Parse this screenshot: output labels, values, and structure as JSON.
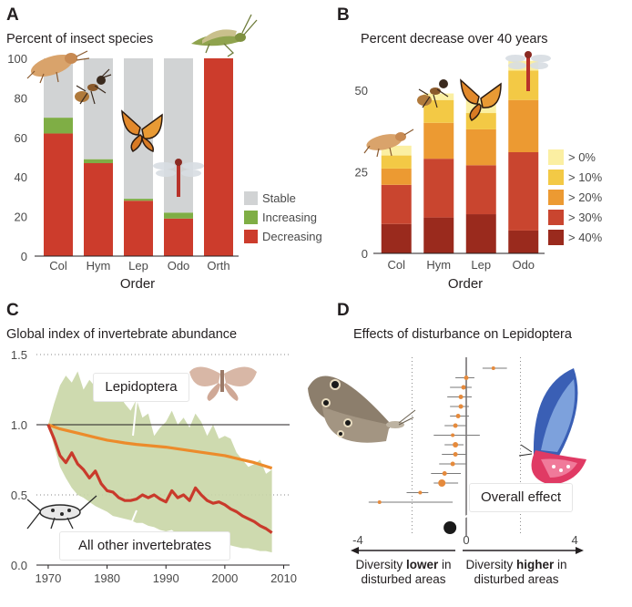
{
  "panels": {
    "A": {
      "letter": "A",
      "title": "Percent of insect species"
    },
    "B": {
      "letter": "B",
      "title": "Percent decrease over 40 years"
    },
    "C": {
      "letter": "C",
      "title": "Global index of invertebrate abundance"
    },
    "D": {
      "letter": "D",
      "title": "Effects of disturbance on Lepidoptera"
    }
  },
  "chart_data": [
    {
      "id": "A",
      "type": "bar",
      "title": "Percent of insect species",
      "xlabel": "Order",
      "ylabel": "",
      "categories": [
        "Col",
        "Hym",
        "Lep",
        "Odo",
        "Orth"
      ],
      "ylim": [
        0,
        100
      ],
      "yticks": [
        0,
        20,
        40,
        60,
        80,
        100
      ],
      "stacked": true,
      "series": [
        {
          "name": "Decreasing",
          "color": "#cc3c2c",
          "values": [
            62,
            47,
            28,
            19,
            100
          ]
        },
        {
          "name": "Increasing",
          "color": "#7fae45",
          "values": [
            8,
            2,
            1,
            3,
            0
          ]
        },
        {
          "name": "Stable",
          "color": "#d1d3d4",
          "values": [
            30,
            51,
            71,
            78,
            0
          ]
        }
      ],
      "legend_order": [
        "Stable",
        "Increasing",
        "Decreasing"
      ],
      "legend_position": "bottom-right"
    },
    {
      "id": "B",
      "type": "bar",
      "title": "Percent decrease over 40 years",
      "xlabel": "Order",
      "ylabel": "",
      "categories": [
        "Col",
        "Hym",
        "Lep",
        "Odo"
      ],
      "ylim": [
        0,
        62
      ],
      "yticks": [
        0,
        25,
        50
      ],
      "stacked": true,
      "series": [
        {
          "name": "> 40%",
          "color": "#9a2a1d",
          "values": [
            9,
            11,
            12,
            7
          ]
        },
        {
          "name": "> 30%",
          "color": "#c9452f",
          "values": [
            12,
            18,
            15,
            24
          ]
        },
        {
          "name": "> 20%",
          "color": "#ec9a32",
          "values": [
            5,
            11,
            11,
            16
          ]
        },
        {
          "name": "> 10%",
          "color": "#f3c945",
          "values": [
            4,
            7,
            5,
            9
          ]
        },
        {
          "name": "> 0%",
          "color": "#fbefa2",
          "values": [
            3,
            2,
            4,
            3
          ]
        }
      ],
      "legend_order": [
        "> 0%",
        "> 10%",
        "> 20%",
        "> 30%",
        "> 40%"
      ],
      "legend_position": "right"
    },
    {
      "id": "C",
      "type": "line",
      "title": "Global index of invertebrate abundance",
      "xlabel": "",
      "ylabel": "",
      "xlim": [
        1968,
        2011
      ],
      "xticks": [
        1970,
        1980,
        1990,
        2000,
        2010
      ],
      "ylim": [
        0.0,
        1.5
      ],
      "yticks": [
        "0.0",
        "0.5",
        "1.0",
        "1.5"
      ],
      "reference_line": 1.0,
      "band": {
        "color": "#c9d6a6",
        "x": [
          1970,
          1971,
          1972,
          1973,
          1974,
          1975,
          1976,
          1977,
          1978,
          1979,
          1980,
          1981,
          1982,
          1983,
          1984,
          1985,
          1986,
          1987,
          1988,
          1989,
          1990,
          1991,
          1992,
          1993,
          1994,
          1995,
          1996,
          1997,
          1998,
          1999,
          2000,
          2001,
          2002,
          2003,
          2004,
          2005,
          2006,
          2007,
          2008
        ],
        "upper": [
          1.0,
          1.15,
          1.28,
          1.35,
          1.3,
          1.38,
          1.25,
          1.32,
          1.27,
          1.3,
          1.28,
          1.2,
          1.22,
          1.15,
          1.1,
          1.18,
          1.05,
          1.08,
          0.92,
          0.98,
          1.02,
          1.1,
          1.0,
          1.05,
          0.98,
          1.08,
          1.02,
          0.92,
          1.0,
          0.9,
          0.92,
          0.9,
          0.8,
          0.75,
          0.7,
          0.72,
          0.75,
          0.65,
          0.68
        ],
        "lower": [
          1.0,
          0.85,
          0.7,
          0.62,
          0.55,
          0.5,
          0.48,
          0.45,
          0.42,
          0.4,
          0.38,
          0.35,
          0.34,
          0.33,
          0.32,
          0.3,
          0.3,
          0.28,
          0.27,
          0.25,
          0.24,
          0.25,
          0.22,
          0.2,
          0.2,
          0.19,
          0.18,
          0.18,
          0.17,
          0.16,
          0.15,
          0.14,
          0.13,
          0.12,
          0.12,
          0.11,
          0.1,
          0.1,
          0.09
        ]
      },
      "series": [
        {
          "name": "Lepidoptera",
          "color": "#ec8b2b",
          "x": [
            1970,
            1972,
            1975,
            1978,
            1980,
            1983,
            1985,
            1990,
            1995,
            2000,
            2005,
            2008
          ],
          "values": [
            1.0,
            0.97,
            0.94,
            0.91,
            0.89,
            0.87,
            0.86,
            0.84,
            0.81,
            0.78,
            0.73,
            0.69
          ]
        },
        {
          "name": "All other invertebrates",
          "color": "#c93a2b",
          "x": [
            1970,
            1971,
            1972,
            1973,
            1974,
            1975,
            1976,
            1977,
            1978,
            1979,
            1980,
            1981,
            1982,
            1983,
            1984,
            1985,
            1986,
            1987,
            1988,
            1989,
            1990,
            1991,
            1992,
            1993,
            1994,
            1995,
            1996,
            1997,
            1998,
            1999,
            2000,
            2001,
            2002,
            2003,
            2004,
            2005,
            2006,
            2007,
            2008
          ],
          "values": [
            1.0,
            0.9,
            0.78,
            0.73,
            0.8,
            0.72,
            0.68,
            0.62,
            0.67,
            0.58,
            0.53,
            0.52,
            0.48,
            0.46,
            0.46,
            0.47,
            0.5,
            0.48,
            0.5,
            0.47,
            0.45,
            0.53,
            0.48,
            0.5,
            0.46,
            0.55,
            0.5,
            0.46,
            0.44,
            0.45,
            0.43,
            0.4,
            0.38,
            0.35,
            0.33,
            0.31,
            0.28,
            0.26,
            0.23
          ]
        }
      ]
    },
    {
      "id": "D",
      "type": "scatter",
      "title": "Effects of disturbance on Lepidoptera",
      "xlim": [
        -4.3,
        4.3
      ],
      "xticks": [
        "-4",
        "0",
        "4"
      ],
      "reference_lines": [
        -2,
        0,
        2
      ],
      "points": [
        {
          "x": 1.0,
          "low": 0.6,
          "high": 1.5,
          "size": 3
        },
        {
          "x": 0.0,
          "low": -0.4,
          "high": 0.3,
          "size": 4
        },
        {
          "x": -0.1,
          "low": -0.6,
          "high": 0.2,
          "size": 4
        },
        {
          "x": -0.2,
          "low": -0.7,
          "high": 0.2,
          "size": 4
        },
        {
          "x": -0.2,
          "low": -0.6,
          "high": 0.1,
          "size": 4
        },
        {
          "x": -0.3,
          "low": -0.6,
          "high": 0.1,
          "size": 4
        },
        {
          "x": -0.4,
          "low": -0.8,
          "high": 0.0,
          "size": 4
        },
        {
          "x": -0.5,
          "low": -1.2,
          "high": 0.5,
          "size": 3
        },
        {
          "x": -0.4,
          "low": -0.8,
          "high": -0.1,
          "size": 5
        },
        {
          "x": -0.4,
          "low": -0.9,
          "high": 0.0,
          "size": 4
        },
        {
          "x": -0.5,
          "low": -1.0,
          "high": 0.0,
          "size": 4
        },
        {
          "x": -0.8,
          "low": -1.3,
          "high": -0.2,
          "size": 4
        },
        {
          "x": -0.9,
          "low": -1.2,
          "high": -0.3,
          "size": 7
        },
        {
          "x": -1.7,
          "low": -2.2,
          "high": -1.4,
          "size": 3
        },
        {
          "x": -3.2,
          "low": -3.6,
          "high": -0.5,
          "size": 3
        }
      ],
      "overall_effect": {
        "x": -0.6,
        "label": "Overall effect"
      },
      "arrow_left": {
        "pre": "Diversity ",
        "bold": "lower",
        "post": " in",
        "line2": "disturbed areas"
      },
      "arrow_right": {
        "pre": "Diversity ",
        "bold": "higher",
        "post": " in",
        "line2": "disturbed areas"
      }
    }
  ],
  "colors": {
    "axis": "#231f20",
    "tick_text": "#4a4a4a",
    "grid_dots": "#8a8a8a",
    "band": "#c9d6a6",
    "orange": "#ec8b2b",
    "red": "#c93a2b",
    "point_orange": "#e58a3c"
  },
  "icons": [
    "beetle-icon",
    "grasshopper-icon",
    "ant-icon",
    "butterfly-monarch-icon",
    "dragonfly-icon",
    "moth-icon",
    "longhorn-beetle-icon",
    "ringlet-butterfly-icon",
    "tropical-butterfly-icon"
  ]
}
